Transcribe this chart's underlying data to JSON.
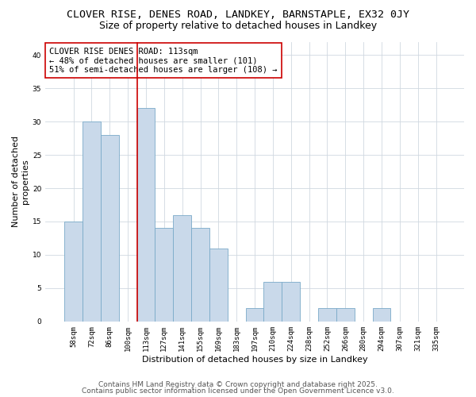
{
  "title": "CLOVER RISE, DENES ROAD, LANDKEY, BARNSTAPLE, EX32 0JY",
  "subtitle": "Size of property relative to detached houses in Landkey",
  "xlabel": "Distribution of detached houses by size in Landkey",
  "ylabel": "Number of detached\nproperties",
  "categories": [
    "58sqm",
    "72sqm",
    "86sqm",
    "100sqm",
    "113sqm",
    "127sqm",
    "141sqm",
    "155sqm",
    "169sqm",
    "183sqm",
    "197sqm",
    "210sqm",
    "224sqm",
    "238sqm",
    "252sqm",
    "266sqm",
    "280sqm",
    "294sqm",
    "307sqm",
    "321sqm",
    "335sqm"
  ],
  "values": [
    15,
    30,
    28,
    0,
    32,
    14,
    16,
    14,
    11,
    0,
    2,
    6,
    6,
    0,
    2,
    2,
    0,
    2,
    0,
    0,
    0
  ],
  "bar_color": "#c9d9ea",
  "bar_edge_color": "#7aaac8",
  "vline_x_index": 4,
  "vline_color": "#cc0000",
  "annotation_text": "CLOVER RISE DENES ROAD: 113sqm\n← 48% of detached houses are smaller (101)\n51% of semi-detached houses are larger (108) →",
  "ylim": [
    0,
    42
  ],
  "yticks": [
    0,
    5,
    10,
    15,
    20,
    25,
    30,
    35,
    40
  ],
  "bg_color": "#ffffff",
  "plot_bg_color": "#ffffff",
  "grid_color": "#d0d8e0",
  "footer_line1": "Contains HM Land Registry data © Crown copyright and database right 2025.",
  "footer_line2": "Contains public sector information licensed under the Open Government Licence v3.0.",
  "title_fontsize": 9.5,
  "subtitle_fontsize": 9,
  "annotation_fontsize": 7.5,
  "ylabel_fontsize": 8,
  "xlabel_fontsize": 8,
  "tick_fontsize": 6.5,
  "footer_fontsize": 6.5
}
